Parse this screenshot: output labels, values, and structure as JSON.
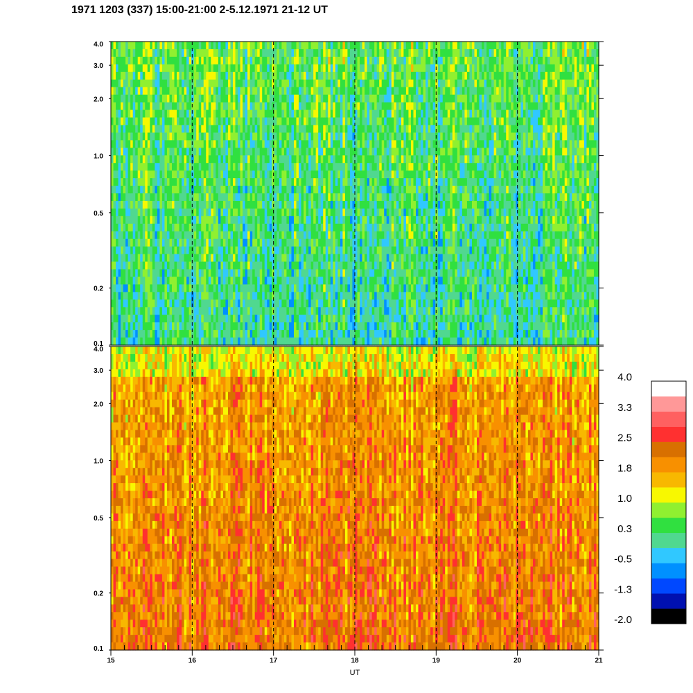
{
  "title": "1971 1203 (337) 15:00-21:00 2-5.12.1971  21-12 UT",
  "chart_data": {
    "type": "heatmap",
    "title": "1971 1203 (337) 15:00-21:00 2-5.12.1971  21-12 UT",
    "xlabel": "UT",
    "xlim": [
      15,
      21
    ],
    "x_ticks": [
      15,
      16,
      17,
      18,
      19,
      20,
      21
    ],
    "x_tick_labels": [
      "15",
      "16",
      "17",
      "18",
      "19",
      "20",
      "21"
    ],
    "dashed_lines_x": [
      16,
      17,
      18,
      19,
      20
    ],
    "y_scale": "log",
    "panels": [
      {
        "name": "upper",
        "ylim": [
          0.1,
          4.0
        ],
        "y_ticks": [
          0.1,
          0.2,
          0.5,
          1.0,
          2.0,
          3.0,
          4.0
        ],
        "y_tick_labels": [
          "0.1",
          "0.2",
          "0.5",
          "1.0",
          "2.0",
          "3.0",
          "4.0"
        ],
        "typical_level": 0.3
      },
      {
        "name": "lower",
        "ylim": [
          0.1,
          4.0
        ],
        "y_ticks": [
          0.1,
          0.2,
          0.5,
          1.0,
          2.0,
          3.0,
          4.0
        ],
        "y_tick_labels": [
          "0.1",
          "0.2",
          "0.5",
          "1.0",
          "2.0",
          "3.0",
          "4.0"
        ],
        "typical_level": 1.8
      }
    ],
    "colorbar": {
      "range": [
        -2.0,
        4.0
      ],
      "labels": [
        "4.0",
        "3.3",
        "2.5",
        "1.8",
        "1.0",
        "0.3",
        "-0.5",
        "-1.3",
        "-2.0"
      ],
      "colors": [
        "#000000",
        "#0010b0",
        "#0048ff",
        "#0090ff",
        "#30c8ff",
        "#50d890",
        "#30e040",
        "#90f030",
        "#f8f800",
        "#f8b800",
        "#f89000",
        "#d87000",
        "#ff3030",
        "#ff6060",
        "#ff9898",
        "#ffffff"
      ]
    }
  }
}
